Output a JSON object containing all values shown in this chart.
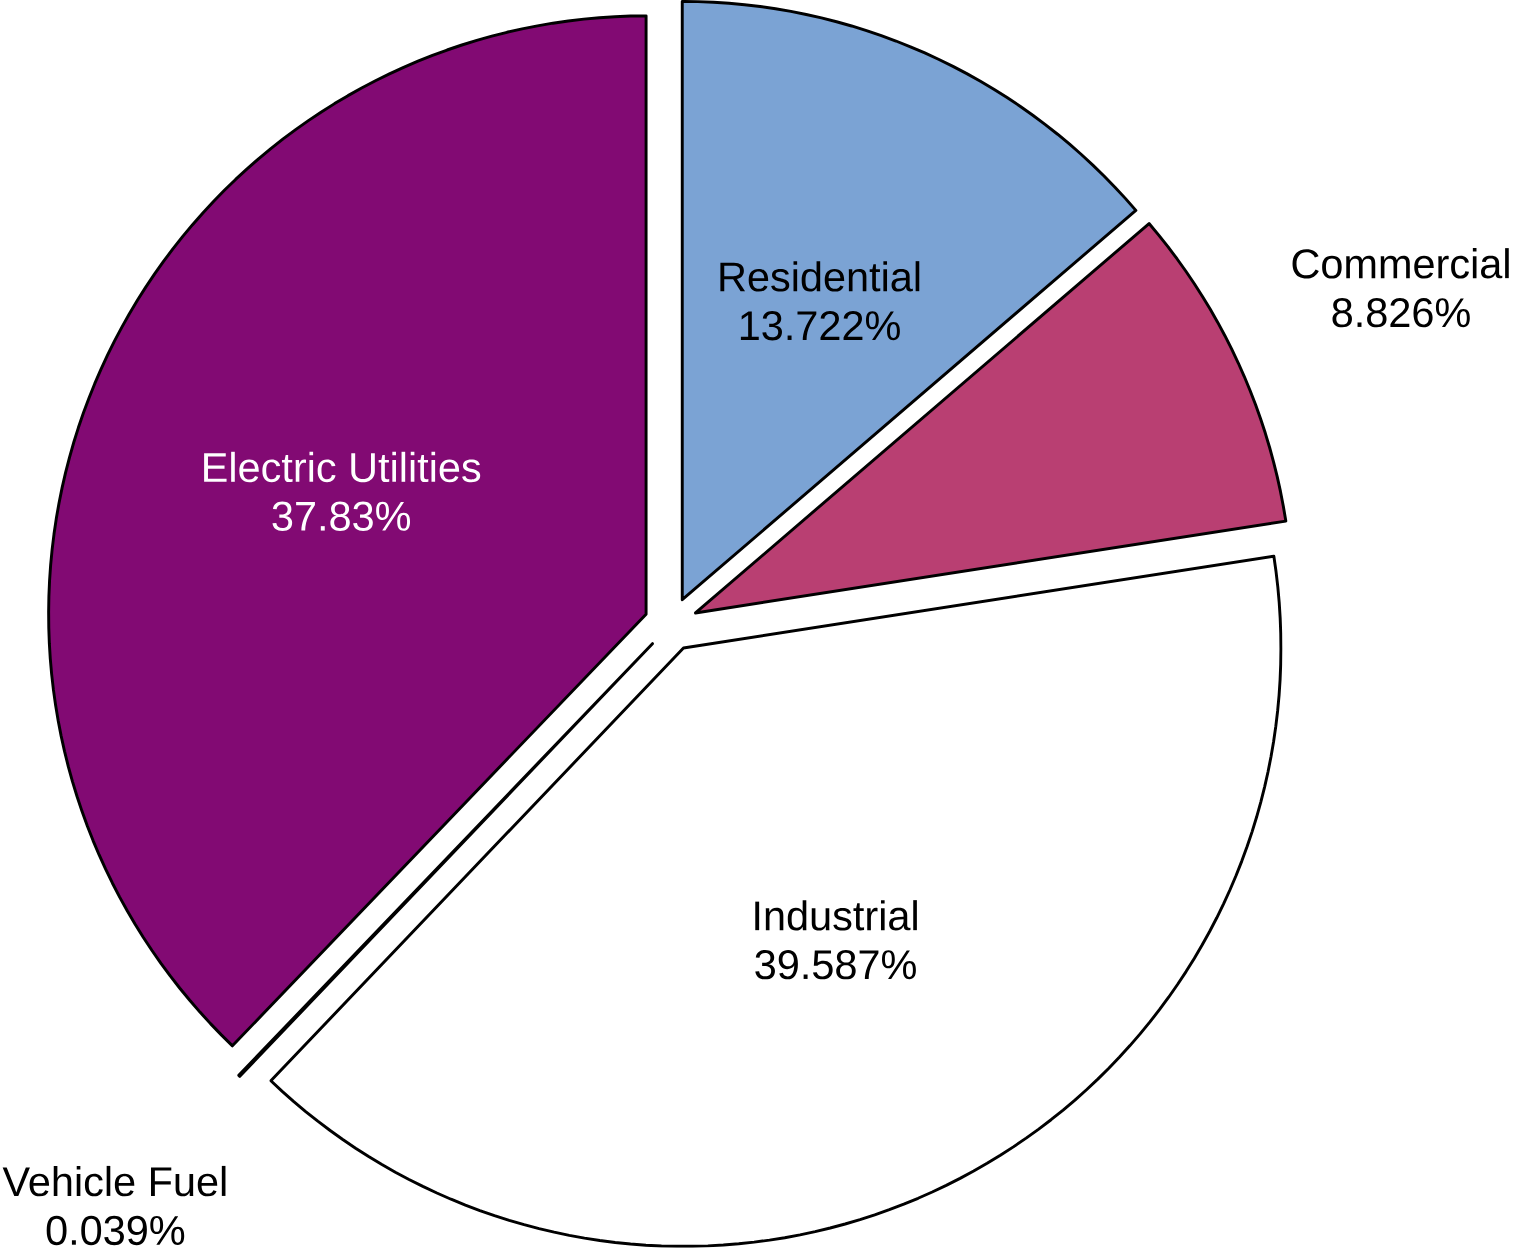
{
  "chart_data": {
    "type": "pie",
    "categories": [
      "Residential",
      "Commercial",
      "Industrial",
      "Vehicle Fuel",
      "Electric Utilities"
    ],
    "values": [
      13.722,
      8.826,
      39.587,
      0.039,
      37.83
    ],
    "value_labels": [
      "13.722%",
      "8.826%",
      "39.587%",
      "0.039%",
      "37.83%"
    ],
    "colors": [
      "#7ba3d4",
      "#b93f72",
      "#ffffff",
      "#ffffff",
      "#820a73"
    ]
  }
}
